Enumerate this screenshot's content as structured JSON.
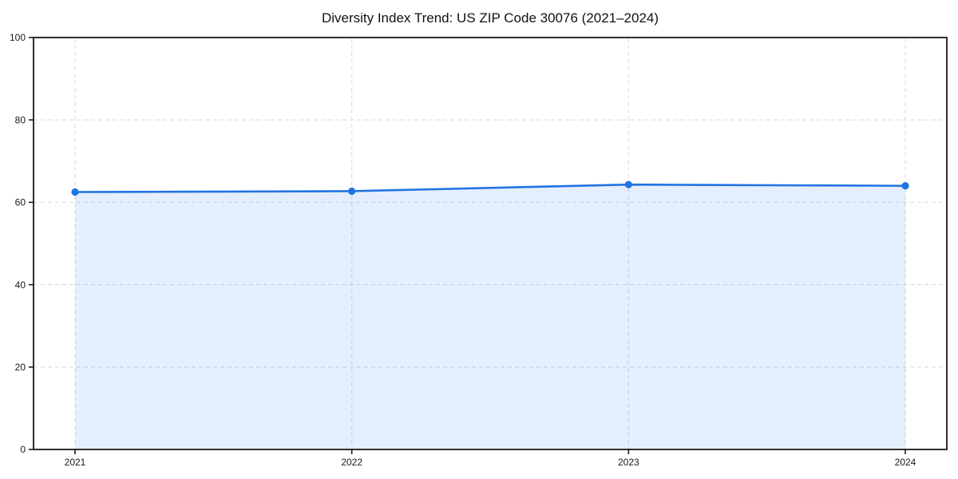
{
  "title": "Diversity Index Trend: US ZIP Code 30076 (2021–2024)",
  "colors": {
    "line": "#2273e3",
    "fill": "rgba(34,115,227,0.12)",
    "grid": "#dcdcdc",
    "spine": "#1a1a1a",
    "tick_text": "#1a1a1a",
    "background": "#ffffff"
  },
  "chart_data": {
    "type": "area",
    "title": "Diversity Index Trend: US ZIP Code 30076 (2021–2024)",
    "categories": [
      "2021",
      "2022",
      "2023",
      "2024"
    ],
    "x": [
      2021,
      2022,
      2023,
      2024
    ],
    "values": [
      62.5,
      62.7,
      64.3,
      64.0
    ],
    "series_name": "Diversity Index",
    "xlabel": "",
    "ylabel": "",
    "ylim": [
      0,
      100
    ],
    "yticks": [
      0,
      20,
      40,
      60,
      80,
      100
    ],
    "xticks": [
      "2021",
      "2022",
      "2023",
      "2024"
    ],
    "grid": true,
    "grid_style": "dashed",
    "legend_position": "none",
    "marker": "circle",
    "line_color": "#2273e3",
    "fill_color": "rgba(34,115,227,0.12)"
  }
}
